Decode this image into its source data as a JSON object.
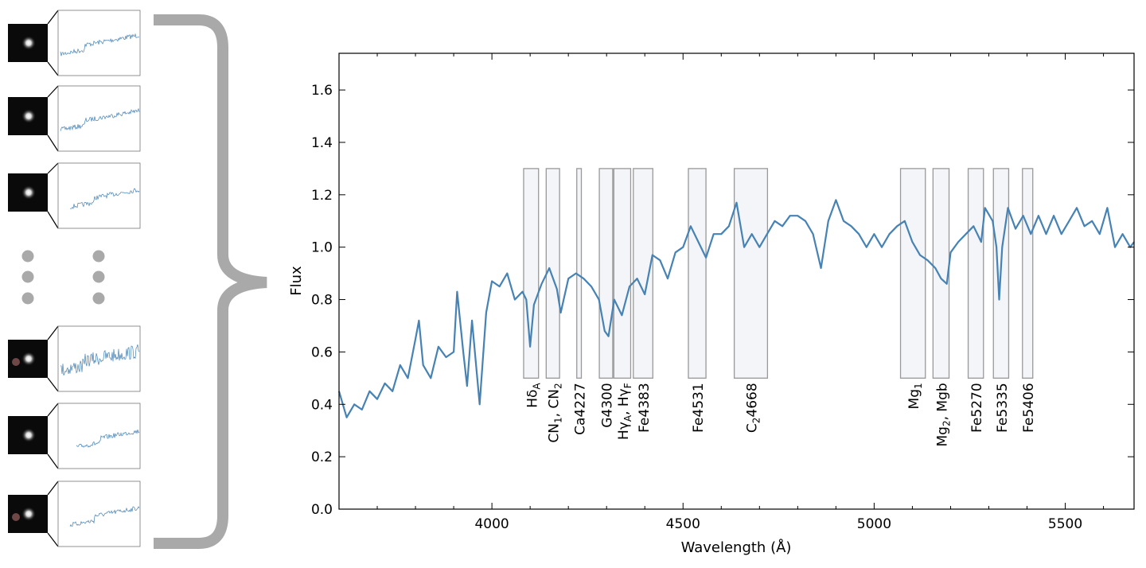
{
  "chart_data": {
    "type": "line",
    "title": "",
    "xlabel": "Wavelength (Å)",
    "ylabel": "Flux",
    "xlim": [
      3600,
      5680
    ],
    "ylim": [
      0,
      1.74
    ],
    "xticks": [
      4000,
      4500,
      5000,
      5500
    ],
    "yticks": [
      0.0,
      0.2,
      0.4,
      0.6,
      0.8,
      1.0,
      1.2,
      1.4,
      1.6
    ],
    "ytick_labels": [
      "0.0",
      "0.2",
      "0.4",
      "0.6",
      "0.8",
      "1.0",
      "1.2",
      "1.4",
      "1.6"
    ],
    "xtick_labels": [
      "4000",
      "4500",
      "5000",
      "5500"
    ],
    "grid": false,
    "line_color": "#4682b4",
    "band_fill": "#f3f5f8",
    "band_edge": "#999999",
    "band_flux_range": [
      0.5,
      1.3
    ],
    "spectrum": {
      "x": [
        3600,
        3620,
        3640,
        3660,
        3680,
        3700,
        3720,
        3740,
        3760,
        3780,
        3800,
        3809,
        3820,
        3840,
        3860,
        3880,
        3900,
        3909,
        3925,
        3935,
        3948,
        3968,
        3985,
        4000,
        4020,
        4040,
        4060,
        4080,
        4090,
        4100,
        4110,
        4130,
        4150,
        4170,
        4180,
        4200,
        4220,
        4240,
        4260,
        4280,
        4295,
        4305,
        4320,
        4340,
        4360,
        4380,
        4400,
        4420,
        4440,
        4460,
        4480,
        4500,
        4520,
        4540,
        4560,
        4580,
        4600,
        4620,
        4640,
        4660,
        4680,
        4700,
        4720,
        4740,
        4760,
        4780,
        4800,
        4820,
        4840,
        4861,
        4880,
        4900,
        4920,
        4940,
        4960,
        4980,
        5000,
        5020,
        5040,
        5060,
        5080,
        5100,
        5120,
        5140,
        5160,
        5175,
        5190,
        5200,
        5220,
        5240,
        5260,
        5280,
        5290,
        5310,
        5320,
        5327,
        5335,
        5350,
        5370,
        5390,
        5410,
        5430,
        5450,
        5470,
        5490,
        5510,
        5530,
        5550,
        5570,
        5590,
        5610,
        5630,
        5650,
        5670,
        5680
      ],
      "y": [
        0.45,
        0.35,
        0.4,
        0.38,
        0.45,
        0.42,
        0.48,
        0.45,
        0.55,
        0.5,
        0.65,
        0.72,
        0.55,
        0.5,
        0.62,
        0.58,
        0.6,
        0.83,
        0.6,
        0.47,
        0.72,
        0.4,
        0.75,
        0.87,
        0.85,
        0.9,
        0.8,
        0.83,
        0.8,
        0.62,
        0.78,
        0.86,
        0.92,
        0.84,
        0.75,
        0.88,
        0.9,
        0.88,
        0.85,
        0.8,
        0.68,
        0.66,
        0.8,
        0.74,
        0.85,
        0.88,
        0.82,
        0.97,
        0.95,
        0.88,
        0.98,
        1.0,
        1.08,
        1.02,
        0.96,
        1.05,
        1.05,
        1.08,
        1.17,
        1.0,
        1.05,
        1.0,
        1.05,
        1.1,
        1.08,
        1.12,
        1.12,
        1.1,
        1.05,
        0.92,
        1.1,
        1.18,
        1.1,
        1.08,
        1.05,
        1.0,
        1.05,
        1.0,
        1.05,
        1.08,
        1.1,
        1.02,
        0.97,
        0.95,
        0.92,
        0.88,
        0.86,
        0.98,
        1.02,
        1.05,
        1.08,
        1.02,
        1.15,
        1.1,
        1.0,
        0.8,
        1.0,
        1.15,
        1.07,
        1.12,
        1.05,
        1.12,
        1.05,
        1.12,
        1.05,
        1.1,
        1.15,
        1.08,
        1.1,
        1.05,
        1.15,
        1.0,
        1.05,
        1.0,
        1.02
      ]
    },
    "bands": [
      {
        "start": 4083,
        "end": 4122,
        "label": [
          {
            "t": "Hδ"
          },
          {
            "t": "A",
            "sub": true
          }
        ]
      },
      {
        "start": 4142,
        "end": 4177,
        "label": [
          {
            "t": "CN"
          },
          {
            "t": "1",
            "sub": true
          },
          {
            "t": ", CN"
          },
          {
            "t": "2",
            "sub": true
          }
        ]
      },
      {
        "start": 4222,
        "end": 4234,
        "label": [
          {
            "t": "Ca4227"
          }
        ]
      },
      {
        "start": 4281,
        "end": 4316,
        "label": [
          {
            "t": "G4300"
          }
        ]
      },
      {
        "start": 4319,
        "end": 4363,
        "label": [
          {
            "t": "Hγ"
          },
          {
            "t": "A",
            "sub": true
          },
          {
            "t": ", Hγ"
          },
          {
            "t": "F",
            "sub": true
          }
        ]
      },
      {
        "start": 4370,
        "end": 4421,
        "label": [
          {
            "t": "Fe4383"
          }
        ]
      },
      {
        "start": 4514,
        "end": 4560,
        "label": [
          {
            "t": "Fe4531"
          }
        ]
      },
      {
        "start": 4634,
        "end": 4721,
        "label": [
          {
            "t": "C"
          },
          {
            "t": "2",
            "sub": true
          },
          {
            "t": "4668"
          }
        ]
      },
      {
        "start": 5069,
        "end": 5134,
        "label": [
          {
            "t": "Mg"
          },
          {
            "t": "1",
            "sub": true
          }
        ]
      },
      {
        "start": 5154,
        "end": 5196,
        "label": [
          {
            "t": "Mg"
          },
          {
            "t": "2",
            "sub": true
          },
          {
            "t": ", Mgb"
          }
        ]
      },
      {
        "start": 5246,
        "end": 5286,
        "label": [
          {
            "t": "Fe5270"
          }
        ]
      },
      {
        "start": 5312,
        "end": 5352,
        "label": [
          {
            "t": "Fe5335"
          }
        ]
      },
      {
        "start": 5388,
        "end": 5415,
        "label": [
          {
            "t": "Fe5406"
          }
        ]
      }
    ]
  },
  "thumbnails": {
    "count_top": 3,
    "count_bottom": 3,
    "ellipsis": "vertical-dots",
    "brace_color": "#a9a9a9",
    "connector": "curly-brace-icon"
  }
}
